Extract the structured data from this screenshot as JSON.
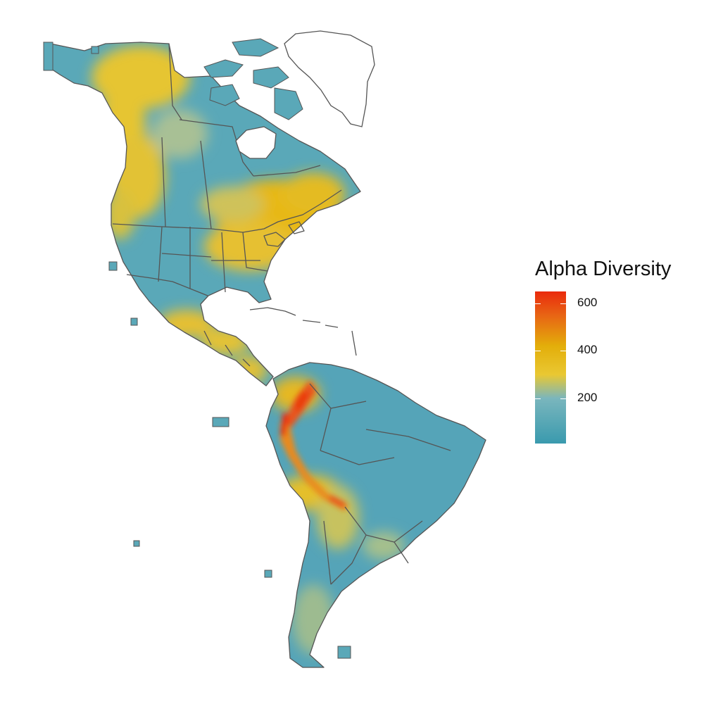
{
  "legend": {
    "title": "Alpha Diversity",
    "min": 10,
    "max": 650,
    "ticks": [
      {
        "value": 200,
        "label": "200"
      },
      {
        "value": 400,
        "label": "400"
      },
      {
        "value": 600,
        "label": "600"
      }
    ],
    "color_stops": [
      {
        "value": 10,
        "color": "#3a9aae"
      },
      {
        "value": 200,
        "color": "#7ab6bd"
      },
      {
        "value": 300,
        "color": "#e9c832"
      },
      {
        "value": 420,
        "color": "#e3ae0a"
      },
      {
        "value": 550,
        "color": "#e86414"
      },
      {
        "value": 650,
        "color": "#ea2a0c"
      }
    ]
  },
  "colors": {
    "ocean": "#ffffff",
    "boundary": "#555555",
    "greenland": "#ffffff",
    "low": "#5aa8b8",
    "mid": "#e9c832",
    "high": "#ea2a0c"
  }
}
